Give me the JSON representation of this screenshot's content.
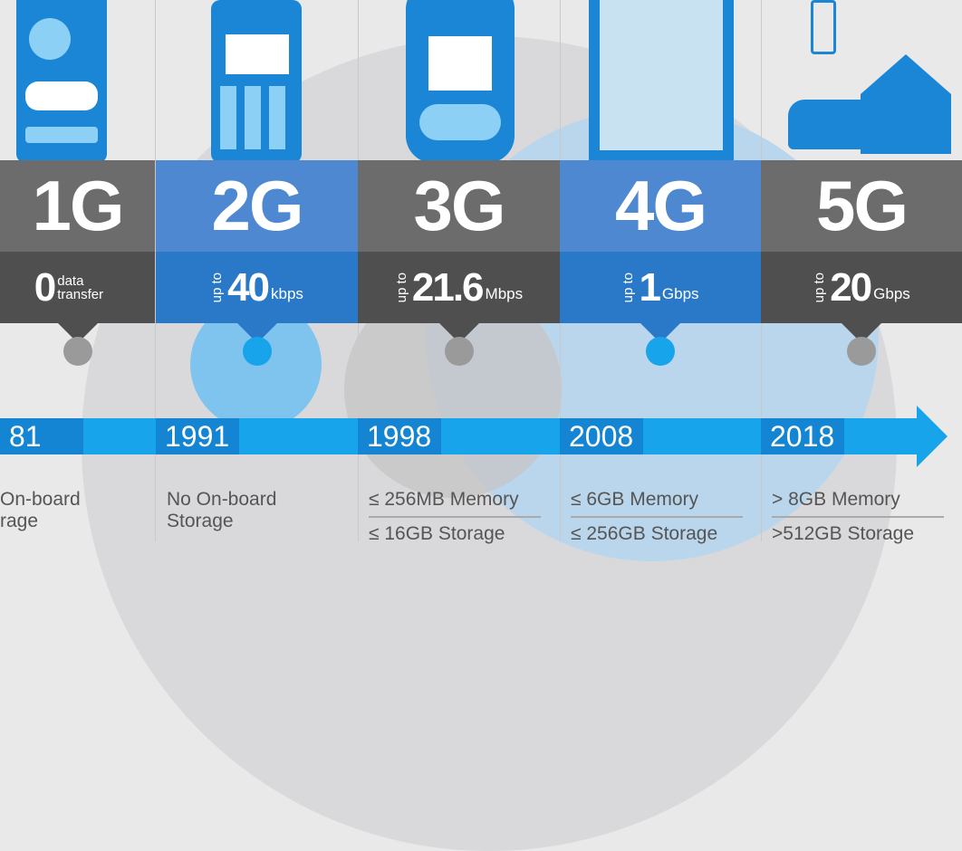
{
  "colors": {
    "gray_header": "#6c6c6c",
    "gray_speed": "#4f4f4f",
    "blue_header": "#4d88d0",
    "blue_speed": "#2a78c8",
    "timeline": "#17a4ea",
    "year_box": "#1485d3"
  },
  "generations": [
    {
      "label": "1G",
      "speed_prefix": "",
      "speed_value": "0",
      "speed_unit": "data transfer",
      "year": "81",
      "info": [
        "On-board",
        "rage"
      ],
      "theme": "gray"
    },
    {
      "label": "2G",
      "speed_prefix": "up to",
      "speed_value": "40",
      "speed_unit": "kbps",
      "year": "1991",
      "info": [
        "No On-board",
        "Storage"
      ],
      "theme": "blue"
    },
    {
      "label": "3G",
      "speed_prefix": "up to",
      "speed_value": "21.6",
      "speed_unit": "Mbps",
      "year": "1998",
      "info": [
        "≤ 256MB Memory",
        "≤ 16GB Storage"
      ],
      "theme": "gray"
    },
    {
      "label": "4G",
      "speed_prefix": "up to",
      "speed_value": "1",
      "speed_unit": "Gbps",
      "year": "2008",
      "info": [
        "≤ 6GB Memory",
        "≤ 256GB Storage"
      ],
      "theme": "blue"
    },
    {
      "label": "5G",
      "speed_prefix": "up to",
      "speed_value": "20",
      "speed_unit": "Gbps",
      "year": "2018",
      "info": [
        "> 8GB Memory",
        ">512GB Storage"
      ],
      "theme": "gray"
    }
  ],
  "icons": [
    "cordless-phone-icon",
    "feature-phone-icon",
    "nokia-phone-icon",
    "smartphone-icon",
    "smart-home-car-icon"
  ]
}
